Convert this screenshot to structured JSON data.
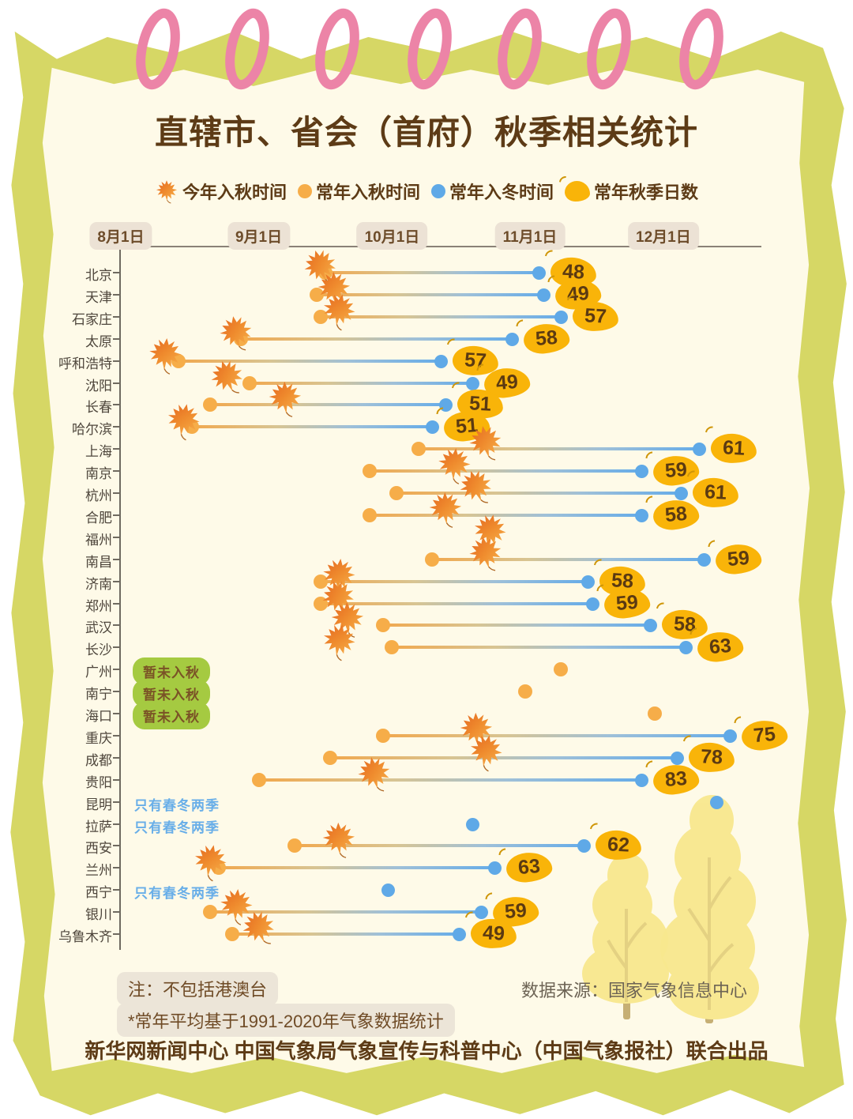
{
  "page": {
    "title": "直辖市、省会（首府）秋季相关统计",
    "notes": {
      "line1": "注：不包括港澳台",
      "line2": "*常年平均基于1991-2020年气象数据统计"
    },
    "source": "数据来源：国家气象信息中心",
    "footer": "新华网新闻中心 中国气象局气象宣传与科普中心（中国气象报社）联合出品"
  },
  "legend": {
    "items": [
      {
        "icon": "maple-leaf-icon",
        "label": "今年入秋时间"
      },
      {
        "icon": "orange-dot-icon",
        "label": "常年入秋时间"
      },
      {
        "icon": "blue-dot-icon",
        "label": "常年入冬时间"
      },
      {
        "icon": "yellow-leaf-icon",
        "label": "常年秋季日数"
      }
    ]
  },
  "colors": {
    "border_green": "#d6d765",
    "paper_cream": "#fefae8",
    "ring_pink": "#ec84a7",
    "title_brown": "#5d3b16",
    "autumn_orange": "#f6ad49",
    "winter_blue": "#5fa9e7",
    "badge_yellow": "#f9b409",
    "status_green": "#a5ca41",
    "status_blue_text": "#68aee8",
    "note_bg": "#ece5d8",
    "tree_yellow": "#f8e88e"
  },
  "chart_data": {
    "type": "dumbbell_timeline",
    "title": "直辖市、省会（首府）秋季相关统计",
    "x_axis": {
      "unit": "日期（日序，8月1日=0）",
      "min_day": 0,
      "max_day": 145,
      "ticks": [
        {
          "label": "8月1日",
          "day": 0
        },
        {
          "label": "9月1日",
          "day": 31
        },
        {
          "label": "10月1日",
          "day": 61
        },
        {
          "label": "11月1日",
          "day": 92
        },
        {
          "label": "12月1日",
          "day": 122
        }
      ]
    },
    "legend_position": "top",
    "grid": false,
    "cities": [
      {
        "name": "北京",
        "this_year_autumn": {
          "day": 45,
          "date": "9月15日"
        },
        "normal_autumn": {
          "day": 46,
          "date": "9月16日"
        },
        "normal_winter": {
          "day": 94,
          "date": "11月3日"
        },
        "autumn_days": 48,
        "status": null
      },
      {
        "name": "天津",
        "this_year_autumn": {
          "day": 48,
          "date": "9月18日"
        },
        "normal_autumn": {
          "day": 44,
          "date": "9月14日"
        },
        "normal_winter": {
          "day": 95,
          "date": "11月4日"
        },
        "autumn_days": 49,
        "status": null
      },
      {
        "name": "石家庄",
        "this_year_autumn": {
          "day": 49,
          "date": "9月19日"
        },
        "normal_autumn": {
          "day": 45,
          "date": "9月15日"
        },
        "normal_winter": {
          "day": 99,
          "date": "11月8日"
        },
        "autumn_days": 57,
        "status": null
      },
      {
        "name": "太原",
        "this_year_autumn": {
          "day": 26,
          "date": "8月27日"
        },
        "normal_autumn": {
          "day": 27,
          "date": "8月28日"
        },
        "normal_winter": {
          "day": 88,
          "date": "10月28日"
        },
        "autumn_days": 58,
        "status": null
      },
      {
        "name": "呼和浩特",
        "this_year_autumn": {
          "day": 10,
          "date": "8月11日"
        },
        "normal_autumn": {
          "day": 13,
          "date": "8月14日"
        },
        "normal_winter": {
          "day": 72,
          "date": "10月12日"
        },
        "autumn_days": 57,
        "status": null
      },
      {
        "name": "沈阳",
        "this_year_autumn": {
          "day": 24,
          "date": "8月25日"
        },
        "normal_autumn": {
          "day": 29,
          "date": "8月30日"
        },
        "normal_winter": {
          "day": 79,
          "date": "10月19日"
        },
        "autumn_days": 49,
        "status": null
      },
      {
        "name": "长春",
        "this_year_autumn": {
          "day": 37,
          "date": "9月7日"
        },
        "normal_autumn": {
          "day": 20,
          "date": "8月21日"
        },
        "normal_winter": {
          "day": 73,
          "date": "10月13日"
        },
        "autumn_days": 51,
        "status": null
      },
      {
        "name": "哈尔滨",
        "this_year_autumn": {
          "day": 14,
          "date": "8月15日"
        },
        "normal_autumn": {
          "day": 16,
          "date": "8月17日"
        },
        "normal_winter": {
          "day": 70,
          "date": "10月10日"
        },
        "autumn_days": 51,
        "status": null
      },
      {
        "name": "上海",
        "this_year_autumn": {
          "day": 82,
          "date": "10月22日"
        },
        "normal_autumn": {
          "day": 67,
          "date": "10月7日"
        },
        "normal_winter": {
          "day": 130,
          "date": "12月9日"
        },
        "autumn_days": 61,
        "status": null
      },
      {
        "name": "南京",
        "this_year_autumn": {
          "day": 75,
          "date": "10月15日"
        },
        "normal_autumn": {
          "day": 56,
          "date": "9月26日"
        },
        "normal_winter": {
          "day": 117,
          "date": "11月26日"
        },
        "autumn_days": 59,
        "status": null
      },
      {
        "name": "杭州",
        "this_year_autumn": {
          "day": 80,
          "date": "10月20日"
        },
        "normal_autumn": {
          "day": 62,
          "date": "10月2日"
        },
        "normal_winter": {
          "day": 126,
          "date": "12月5日"
        },
        "autumn_days": 61,
        "status": null
      },
      {
        "name": "合肥",
        "this_year_autumn": {
          "day": 73,
          "date": "10月13日"
        },
        "normal_autumn": {
          "day": 56,
          "date": "9月26日"
        },
        "normal_winter": {
          "day": 117,
          "date": "11月26日"
        },
        "autumn_days": 58,
        "status": null
      },
      {
        "name": "福州",
        "this_year_autumn": {
          "day": 83,
          "date": "10月23日"
        },
        "normal_autumn": null,
        "normal_winter": null,
        "autumn_days": null,
        "status": null
      },
      {
        "name": "南昌",
        "this_year_autumn": {
          "day": 82,
          "date": "10月22日"
        },
        "normal_autumn": {
          "day": 70,
          "date": "10月10日"
        },
        "normal_winter": {
          "day": 131,
          "date": "12月10日"
        },
        "autumn_days": 59,
        "status": null
      },
      {
        "name": "济南",
        "this_year_autumn": {
          "day": 49,
          "date": "9月19日"
        },
        "normal_autumn": {
          "day": 45,
          "date": "9月15日"
        },
        "normal_winter": {
          "day": 105,
          "date": "11月14日"
        },
        "autumn_days": 58,
        "status": null
      },
      {
        "name": "郑州",
        "this_year_autumn": {
          "day": 49,
          "date": "9月19日"
        },
        "normal_autumn": {
          "day": 45,
          "date": "9月15日"
        },
        "normal_winter": {
          "day": 106,
          "date": "11月15日"
        },
        "autumn_days": 59,
        "status": null
      },
      {
        "name": "武汉",
        "this_year_autumn": {
          "day": 51,
          "date": "9月21日"
        },
        "normal_autumn": {
          "day": 59,
          "date": "9月29日"
        },
        "normal_winter": {
          "day": 119,
          "date": "11月28日"
        },
        "autumn_days": 58,
        "status": null
      },
      {
        "name": "长沙",
        "this_year_autumn": {
          "day": 49,
          "date": "9月19日"
        },
        "normal_autumn": {
          "day": 61,
          "date": "10月1日"
        },
        "normal_winter": {
          "day": 127,
          "date": "12月6日"
        },
        "autumn_days": 63,
        "status": null
      },
      {
        "name": "广州",
        "this_year_autumn": null,
        "normal_autumn": {
          "day": 99,
          "date": "11月8日"
        },
        "normal_winter": null,
        "autumn_days": null,
        "status": "暂未入秋"
      },
      {
        "name": "南宁",
        "this_year_autumn": null,
        "normal_autumn": {
          "day": 91,
          "date": "10月31日"
        },
        "normal_winter": null,
        "autumn_days": null,
        "status": "暂未入秋"
      },
      {
        "name": "海口",
        "this_year_autumn": null,
        "normal_autumn": {
          "day": 120,
          "date": "11月29日"
        },
        "normal_winter": null,
        "autumn_days": null,
        "status": "暂未入秋"
      },
      {
        "name": "重庆",
        "this_year_autumn": {
          "day": 80,
          "date": "10月20日"
        },
        "normal_autumn": {
          "day": 59,
          "date": "9月29日"
        },
        "normal_winter": {
          "day": 137,
          "date": "12月16日"
        },
        "autumn_days": 75,
        "status": null
      },
      {
        "name": "成都",
        "this_year_autumn": {
          "day": 82,
          "date": "10月22日"
        },
        "normal_autumn": {
          "day": 47,
          "date": "9月17日"
        },
        "normal_winter": {
          "day": 125,
          "date": "12月4日"
        },
        "autumn_days": 78,
        "status": null
      },
      {
        "name": "贵阳",
        "this_year_autumn": {
          "day": 57,
          "date": "9月27日"
        },
        "normal_autumn": {
          "day": 31,
          "date": "9月1日"
        },
        "normal_winter": {
          "day": 117,
          "date": "11月26日"
        },
        "autumn_days": 83,
        "status": null
      },
      {
        "name": "昆明",
        "this_year_autumn": null,
        "normal_autumn": null,
        "normal_winter": {
          "day": 134,
          "date": "12月13日"
        },
        "autumn_days": null,
        "status": "只有春冬两季"
      },
      {
        "name": "拉萨",
        "this_year_autumn": null,
        "normal_autumn": null,
        "normal_winter": {
          "day": 79,
          "date": "10月19日"
        },
        "autumn_days": null,
        "status": "只有春冬两季"
      },
      {
        "name": "西安",
        "this_year_autumn": {
          "day": 49,
          "date": "9月19日"
        },
        "normal_autumn": {
          "day": 39,
          "date": "9月9日"
        },
        "normal_winter": {
          "day": 104,
          "date": "11月13日"
        },
        "autumn_days": 62,
        "status": null
      },
      {
        "name": "兰州",
        "this_year_autumn": {
          "day": 20,
          "date": "8月21日"
        },
        "normal_autumn": {
          "day": 22,
          "date": "8月23日"
        },
        "normal_winter": {
          "day": 84,
          "date": "10月24日"
        },
        "autumn_days": 63,
        "status": null
      },
      {
        "name": "西宁",
        "this_year_autumn": null,
        "normal_autumn": null,
        "normal_winter": {
          "day": 60,
          "date": "9月30日"
        },
        "autumn_days": null,
        "status": "只有春冬两季"
      },
      {
        "name": "银川",
        "this_year_autumn": {
          "day": 26,
          "date": "8月27日"
        },
        "normal_autumn": {
          "day": 20,
          "date": "8月21日"
        },
        "normal_winter": {
          "day": 81,
          "date": "10月21日"
        },
        "autumn_days": 59,
        "status": null
      },
      {
        "name": "乌鲁木齐",
        "this_year_autumn": {
          "day": 31,
          "date": "9月1日"
        },
        "normal_autumn": {
          "day": 25,
          "date": "8月26日"
        },
        "normal_winter": {
          "day": 76,
          "date": "10月16日"
        },
        "autumn_days": 49,
        "status": null
      }
    ]
  }
}
